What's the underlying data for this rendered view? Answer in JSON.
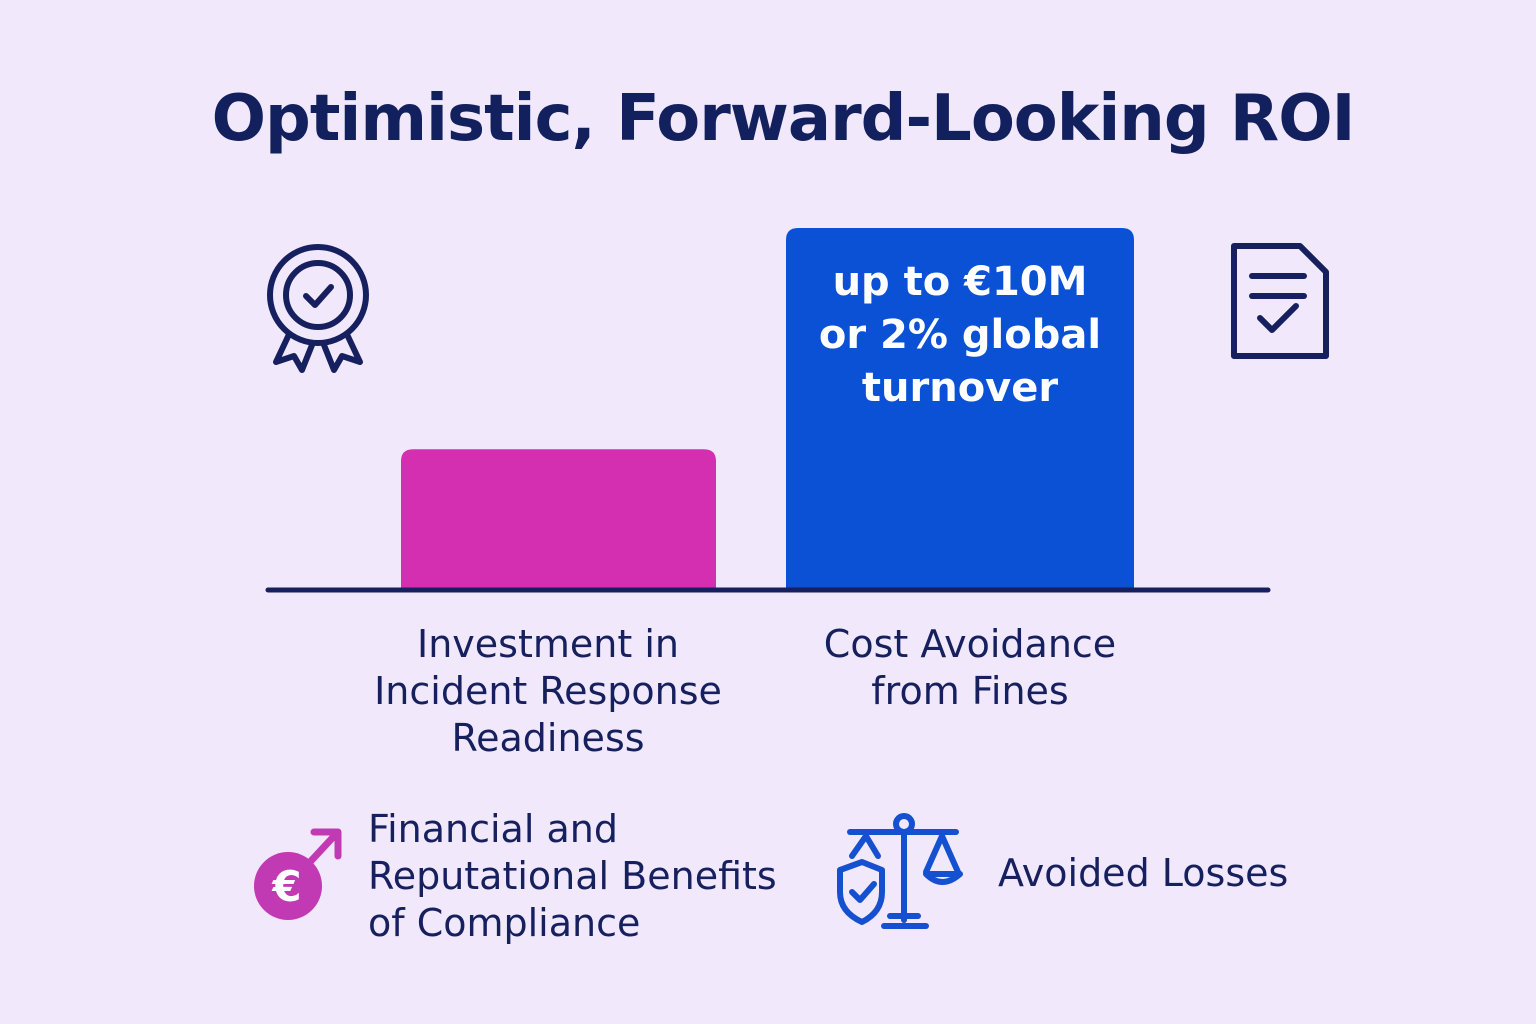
{
  "chart_data": {
    "type": "bar",
    "title": "Optimistic, Forward-Looking ROI",
    "categories": [
      "Investment in Incident Response Readiness",
      "Cost Avoidance from Fines"
    ],
    "category_lines": [
      [
        "Investment in",
        "Incident Response",
        "Readiness"
      ],
      [
        "Cost Avoidance",
        "from Fines"
      ]
    ],
    "values": [
      2.8,
      7.2
    ],
    "ylim": [
      0,
      7.2
    ],
    "value_unit": "relative bar height, axis unlabeled",
    "bar_annotations": [
      "",
      "up to €10M or 2% global turnover"
    ],
    "bar_annotation_lines": [
      [],
      [
        "up to €10M",
        "or 2% global",
        "turnover"
      ]
    ],
    "colors": [
      "#d42fb0",
      "#0a51d6"
    ],
    "axis_color": "#16205e",
    "xlabel": "",
    "ylabel": "",
    "grid": false
  },
  "legend": {
    "items": [
      {
        "icon": "euro-arrow-icon",
        "text": "Financial and Reputational Benefits of Compliance",
        "lines": [
          "Financial and",
          "Reputational Benefits",
          "of Compliance"
        ],
        "color": "#c13ab3"
      },
      {
        "icon": "scales-shield-icon",
        "text": "Avoided Losses",
        "lines": [
          "Avoided Losses"
        ],
        "color": "#1550d0"
      }
    ]
  },
  "decor_icons": [
    "award-badge-icon",
    "checklist-document-icon"
  ],
  "colors": {
    "background": "#f1e8fb",
    "navy": "#16205e"
  }
}
